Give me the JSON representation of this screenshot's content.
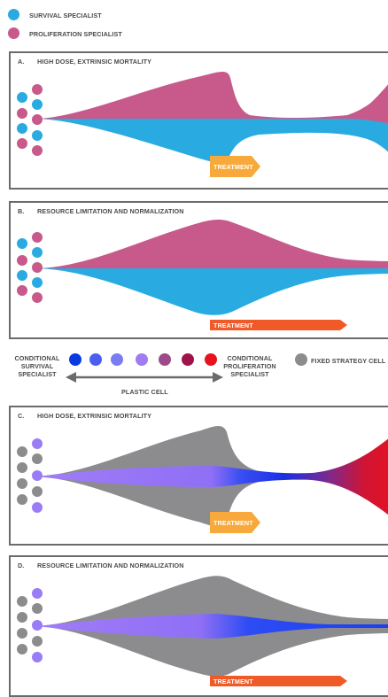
{
  "legend": {
    "survival": {
      "label": "SURVIVAL SPECIALIST",
      "color": "#29abe2"
    },
    "proliferation": {
      "label": "PROLIFERATION SPECIALIST",
      "color": "#c8598b"
    }
  },
  "panels": {
    "a": {
      "letter": "A.",
      "title": "HIGH DOSE, EXTRINSIC MORTALITY",
      "treatment": "TREATMENT",
      "treatment_color": "#f7a93b"
    },
    "b": {
      "letter": "B.",
      "title": "RESOURCE LIMITATION AND NORMALIZATION",
      "treatment": "TREATMENT",
      "treatment_color": "#ef5a28"
    },
    "c": {
      "letter": "C.",
      "title": "HIGH DOSE, EXTRINSIC MORTALITY",
      "treatment": "TREATMENT",
      "treatment_color": "#f7a93b"
    },
    "d": {
      "letter": "D.",
      "title": "RESOURCE LIMITATION AND NORMALIZATION",
      "treatment": "TREATMENT",
      "treatment_color": "#ef5a28"
    }
  },
  "plastic_scale": {
    "left_label_1": "CONDITIONAL",
    "left_label_2": "SURVIVAL",
    "left_label_3": "SPECIALIST",
    "right_label_1": "CONDITIONAL",
    "right_label_2": "PROLIFERATION",
    "right_label_3": "SPECIALIST",
    "arrow_label": "PLASTIC CELL",
    "fixed_label": "FIXED STRATEGY CELL",
    "fixed_color": "#8c8c8e",
    "gradient_colors": [
      "#0a3adf",
      "#4a5ff0",
      "#7a7cf2",
      "#a07cf0",
      "#9c4a8a",
      "#a0134a",
      "#e8121f"
    ]
  },
  "colors": {
    "survival": "#29abe2",
    "proliferation": "#c8598b",
    "fixed": "#8c8c8e",
    "plastic_light": "#9b7cf7",
    "plastic_blue": "#1a3df0",
    "plastic_red": "#e8121f"
  }
}
